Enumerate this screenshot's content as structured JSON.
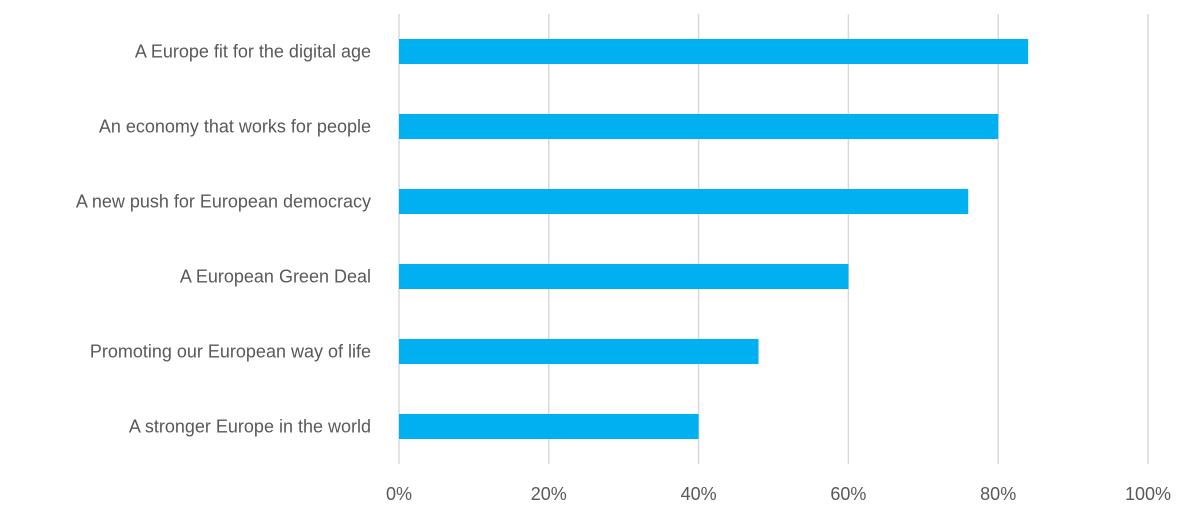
{
  "chart_data": {
    "type": "bar",
    "orientation": "horizontal",
    "categories": [
      "A Europe fit for the digital age",
      "An economy that works for people",
      "A new push for European democracy",
      "A European Green Deal",
      "Promoting our European way of life",
      "A stronger Europe in the world"
    ],
    "values": [
      84,
      80,
      76,
      60,
      48,
      40
    ],
    "value_unit": "%",
    "xlim": [
      0,
      100
    ],
    "x_ticks": [
      "0%",
      "20%",
      "40%",
      "60%",
      "80%",
      "100%"
    ],
    "grid": "vertical",
    "legend": "none",
    "title": "",
    "xlabel": "",
    "ylabel": "",
    "colors": {
      "bar": "#00b0f0",
      "grid": "#d9d9d9",
      "text": "#595959"
    }
  }
}
